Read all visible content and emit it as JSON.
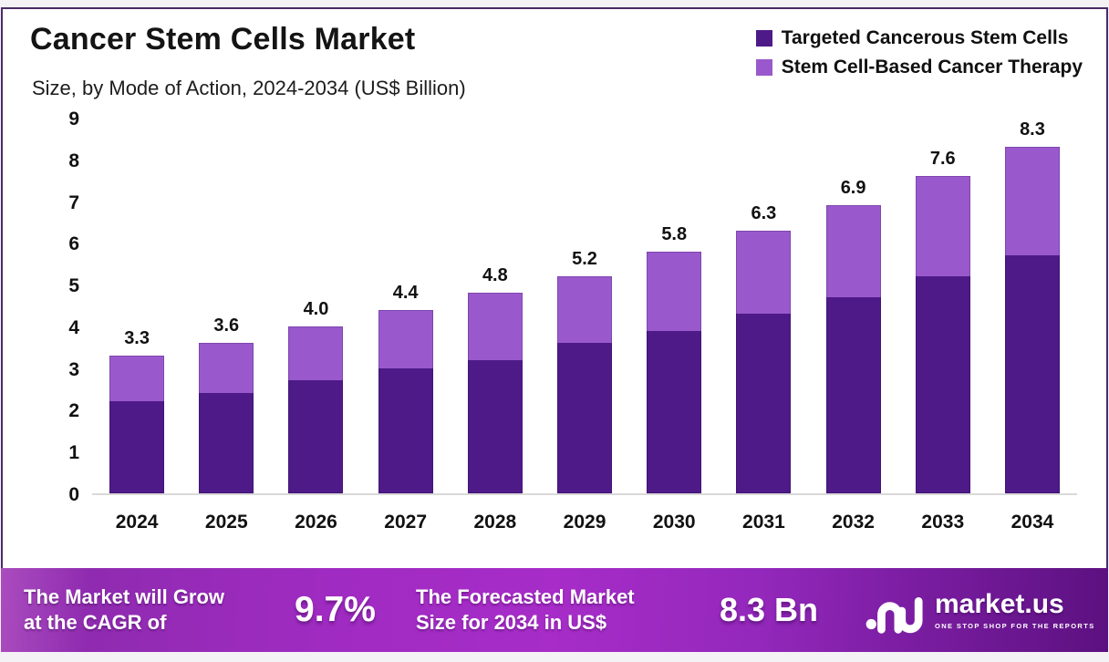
{
  "header": {
    "title": "Cancer Stem Cells Market",
    "subtitle": "Size, by Mode of Action, 2024-2034 (US$ Billion)"
  },
  "legend": [
    {
      "label": "Targeted Cancerous Stem Cells",
      "color": "#4e1a88"
    },
    {
      "label": "Stem Cell-Based Cancer Therapy",
      "color": "#9959cc"
    }
  ],
  "chart_data": {
    "type": "bar",
    "stacked": true,
    "title": "Cancer Stem Cells Market",
    "subtitle": "Size, by Mode of Action, 2024-2034 (US$ Billion)",
    "unit": "US$ Billion",
    "categories": [
      "2024",
      "2025",
      "2026",
      "2027",
      "2028",
      "2029",
      "2030",
      "2031",
      "2032",
      "2033",
      "2034"
    ],
    "series": [
      {
        "name": "Targeted Cancerous Stem Cells",
        "color": "#4e1a88",
        "values": [
          2.2,
          2.4,
          2.7,
          3.0,
          3.2,
          3.6,
          3.9,
          4.3,
          4.7,
          5.2,
          5.7
        ]
      },
      {
        "name": "Stem Cell-Based Cancer Therapy",
        "color": "#9959cc",
        "values": [
          1.1,
          1.2,
          1.3,
          1.4,
          1.6,
          1.6,
          1.9,
          2.0,
          2.2,
          2.4,
          2.6
        ]
      }
    ],
    "totals": [
      "3.3",
      "3.6",
      "4.0",
      "4.4",
      "4.8",
      "5.2",
      "5.8",
      "6.3",
      "6.9",
      "7.6",
      "8.3"
    ],
    "ylim": [
      0,
      9
    ],
    "yticks": [
      "0",
      "1",
      "2",
      "3",
      "4",
      "5",
      "6",
      "7",
      "8",
      "9"
    ],
    "grid": false,
    "legend_position": "top-right"
  },
  "footer": {
    "cagr_line1": "The Market will Grow",
    "cagr_line2": "at the CAGR of",
    "cagr_value": "9.7%",
    "forecast_line1": "The Forecasted Market",
    "forecast_line2": "Size for 2034 in US$",
    "forecast_value": "8.3 Bn",
    "brand_name": "market.us",
    "brand_tagline": "ONE STOP SHOP FOR THE REPORTS"
  },
  "colors": {
    "frame_border": "#4b2a66",
    "axis_line": "#d9d9d9",
    "banner_gradient_mid": "#a72cc8",
    "banner_gradient_end": "#5c1180"
  }
}
